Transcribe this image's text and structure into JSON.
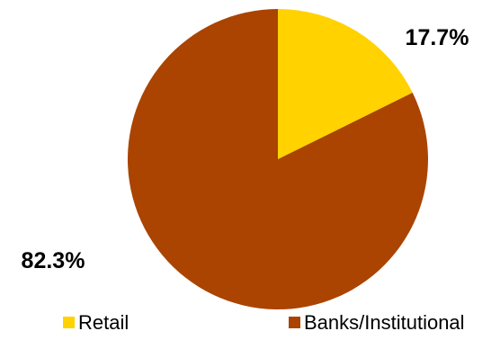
{
  "chart_data": {
    "type": "pie",
    "categories": [
      "Retail",
      "Banks/Institutional"
    ],
    "values": [
      17.7,
      82.3
    ],
    "data_labels": [
      "17.7%",
      "82.3%"
    ],
    "colors": [
      "#FFD200",
      "#AA4400"
    ],
    "start_angle": "12 o'clock",
    "direction": "clockwise",
    "legend": {
      "position": "bottom",
      "entries": [
        "Retail",
        "Banks/Institutional"
      ]
    }
  }
}
